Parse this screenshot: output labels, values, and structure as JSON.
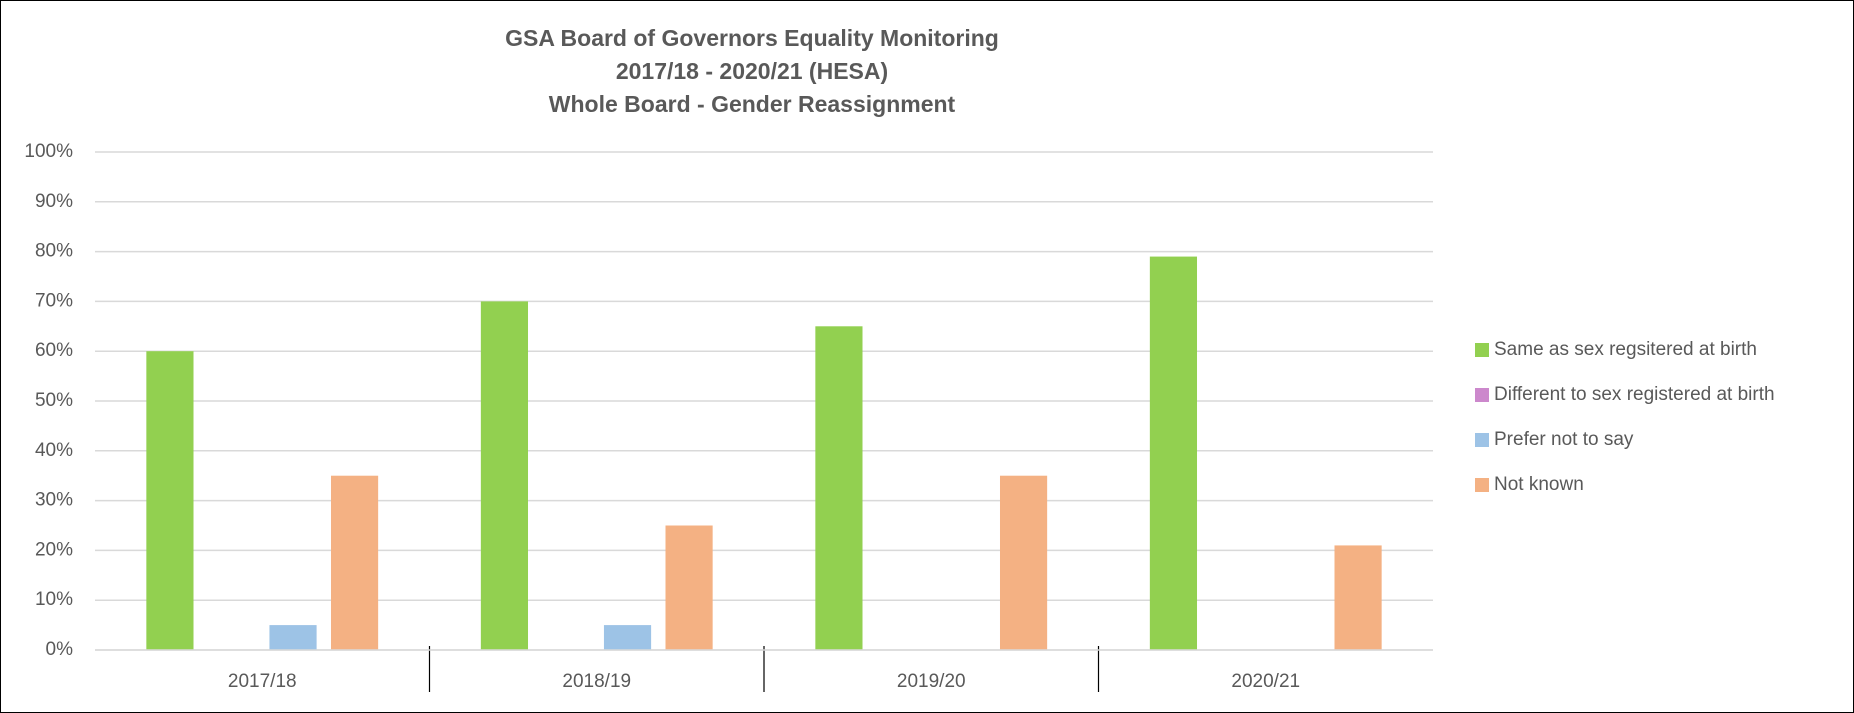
{
  "chart_data": {
    "type": "bar",
    "title": [
      "GSA Board of Governors Equality Monitoring",
      "2017/18 - 2020/21 (HESA)",
      "Whole Board - Gender Reassignment"
    ],
    "categories": [
      "2017/18",
      "2018/19",
      "2019/20",
      "2020/21"
    ],
    "series": [
      {
        "name": "Same as sex regsitered at birth",
        "color": "#92d050",
        "values": [
          60,
          70,
          65,
          79
        ]
      },
      {
        "name": "Different to sex registered at birth",
        "color": "#cc88cc",
        "values": [
          0,
          0,
          0,
          0
        ]
      },
      {
        "name": "Prefer not to say",
        "color": "#9dc3e6",
        "values": [
          5,
          5,
          0,
          0
        ]
      },
      {
        "name": "Not known",
        "color": "#f4b183",
        "values": [
          35,
          25,
          35,
          21
        ]
      }
    ],
    "ylim": [
      0,
      100
    ],
    "yticks": [
      {
        "value": 0,
        "label": "0%"
      },
      {
        "value": 10,
        "label": "10%"
      },
      {
        "value": 20,
        "label": "20%"
      },
      {
        "value": 30,
        "label": "30%"
      },
      {
        "value": 40,
        "label": "40%"
      },
      {
        "value": 50,
        "label": "50%"
      },
      {
        "value": 60,
        "label": "60%"
      },
      {
        "value": 70,
        "label": "70%"
      },
      {
        "value": 80,
        "label": "80%"
      },
      {
        "value": 90,
        "label": "90%"
      },
      {
        "value": 100,
        "label": "100%"
      }
    ],
    "grid": true,
    "legend": "right"
  }
}
